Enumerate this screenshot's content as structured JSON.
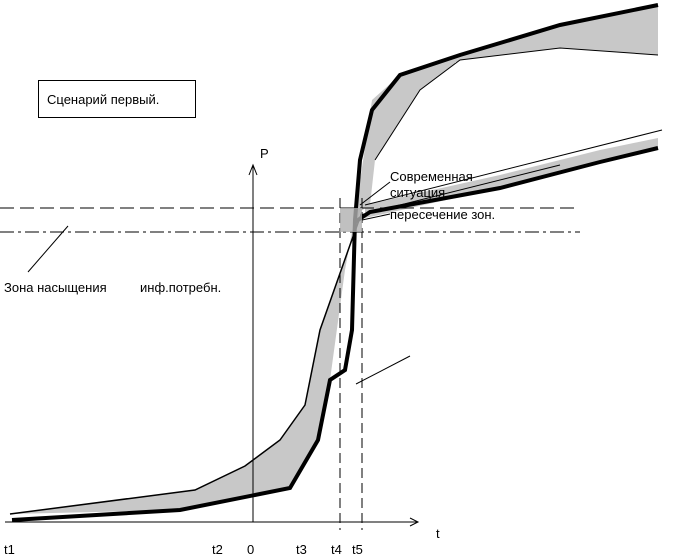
{
  "scenario_title": "Сценарий первый.",
  "axes": {
    "y_label": "P",
    "x_label": "t"
  },
  "ticks": [
    "t1",
    "t2",
    "0",
    "t3",
    "t4",
    "t5"
  ],
  "labels": {
    "modern_line1": "Современная",
    "modern_line2": "ситуация",
    "intersection": "пересечение зон.",
    "saturation_zone": "Зона насыщения",
    "info_needs": "инф.потребн."
  },
  "colors": {
    "zone_fill": "#c8c8c8",
    "line": "#000000",
    "background": "#ffffff"
  }
}
